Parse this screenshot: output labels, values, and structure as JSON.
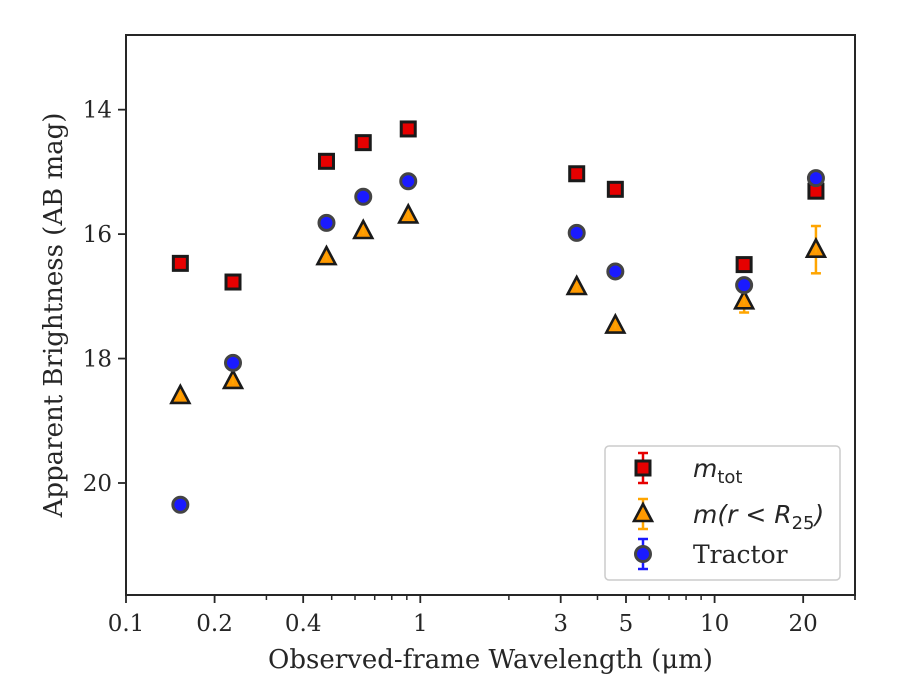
{
  "chart_data": {
    "type": "scatter",
    "xlabel": "Observed-frame Wavelength (μm)",
    "ylabel": "Apparent Brightness (AB mag)",
    "x_scale": "log",
    "xlim": [
      0.1,
      30
    ],
    "ylim": [
      21.8,
      12.8
    ],
    "y_inverted": true,
    "x_ticks": [
      {
        "value": 0.1,
        "label": "0.1"
      },
      {
        "value": 0.2,
        "label": "0.2"
      },
      {
        "value": 0.4,
        "label": "0.4"
      },
      {
        "value": 1,
        "label": "1"
      },
      {
        "value": 3,
        "label": "3"
      },
      {
        "value": 5,
        "label": "5"
      },
      {
        "value": 10,
        "label": "10"
      },
      {
        "value": 20,
        "label": "20"
      }
    ],
    "y_ticks": [
      {
        "value": 14,
        "label": "14"
      },
      {
        "value": 16,
        "label": "16"
      },
      {
        "value": 18,
        "label": "18"
      },
      {
        "value": 20,
        "label": "20"
      }
    ],
    "grid": false,
    "legend_position": "lower right",
    "series": [
      {
        "name": "m_tot",
        "legend_main": "m",
        "legend_sub": "tot",
        "marker": "square",
        "color": "#e60000",
        "errorbar_color": "#e60000",
        "points": [
          {
            "x": 0.153,
            "y": 16.47
          },
          {
            "x": 0.231,
            "y": 16.77
          },
          {
            "x": 0.48,
            "y": 14.83
          },
          {
            "x": 0.64,
            "y": 14.53
          },
          {
            "x": 0.91,
            "y": 14.31
          },
          {
            "x": 3.4,
            "y": 15.03
          },
          {
            "x": 4.6,
            "y": 15.28
          },
          {
            "x": 12.6,
            "y": 16.49
          },
          {
            "x": 22.1,
            "y": 15.31
          }
        ]
      },
      {
        "name": "m(r < R_25)",
        "legend_main": "m(r < R",
        "legend_sub": "25",
        "legend_tail": ")",
        "marker": "triangle",
        "color": "#ff9900",
        "errorbar_color": "#ffa500",
        "points": [
          {
            "x": 0.153,
            "y": 18.6
          },
          {
            "x": 0.231,
            "y": 18.36
          },
          {
            "x": 0.48,
            "y": 16.37
          },
          {
            "x": 0.64,
            "y": 15.95
          },
          {
            "x": 0.91,
            "y": 15.7
          },
          {
            "x": 3.4,
            "y": 16.85
          },
          {
            "x": 4.6,
            "y": 17.47
          },
          {
            "x": 12.6,
            "y": 17.08,
            "err": 0.18
          },
          {
            "x": 22.1,
            "y": 16.25,
            "err": 0.38
          }
        ]
      },
      {
        "name": "Tractor",
        "marker": "circle",
        "color": "#1a1aff",
        "errorbar_color": "#1a1aff",
        "points": [
          {
            "x": 0.153,
            "y": 20.35
          },
          {
            "x": 0.231,
            "y": 18.07
          },
          {
            "x": 0.48,
            "y": 15.82
          },
          {
            "x": 0.64,
            "y": 15.4
          },
          {
            "x": 0.91,
            "y": 15.15
          },
          {
            "x": 3.4,
            "y": 15.98
          },
          {
            "x": 4.6,
            "y": 16.6
          },
          {
            "x": 12.6,
            "y": 16.82
          },
          {
            "x": 22.1,
            "y": 15.1
          }
        ]
      }
    ]
  }
}
